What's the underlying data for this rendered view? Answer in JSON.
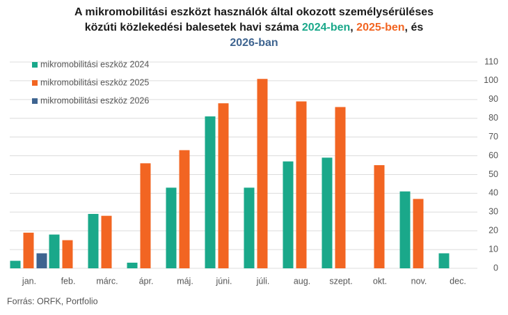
{
  "chart_data": {
    "type": "bar",
    "title_lines": [
      [
        {
          "text": "A mikromobilitási eszközt használók által okozott személysérüléses",
          "color": "#1a1a1a"
        }
      ],
      [
        {
          "text": "közúti közlekedési balesetek havi száma ",
          "color": "#1a1a1a"
        },
        {
          "text": "2024-ben",
          "color": "#1aa88a"
        },
        {
          "text": ", ",
          "color": "#1a1a1a"
        },
        {
          "text": "2025-ben",
          "color": "#f26522"
        },
        {
          "text": ", és",
          "color": "#1a1a1a"
        }
      ],
      [
        {
          "text": "2026-ban",
          "color": "#3e6490"
        }
      ]
    ],
    "categories": [
      "jan.",
      "feb.",
      "márc.",
      "ápr.",
      "máj.",
      "júni.",
      "júli.",
      "aug.",
      "szept.",
      "okt.",
      "nov.",
      "dec."
    ],
    "series": [
      {
        "name": "mikromobilitási eszköz 2024",
        "color": "#1aa88a",
        "values": [
          4,
          18,
          29,
          3,
          43,
          81,
          43,
          57,
          59,
          null,
          41,
          8
        ]
      },
      {
        "name": "mikromobilitási eszköz 2025",
        "color": "#f26522",
        "values": [
          19,
          15,
          28,
          56,
          63,
          88,
          101,
          89,
          86,
          55,
          37,
          null
        ]
      },
      {
        "name": "mikromobilitási eszköz 2026",
        "color": "#3e6490",
        "values": [
          8,
          null,
          null,
          null,
          null,
          null,
          null,
          null,
          null,
          null,
          null,
          null
        ]
      }
    ],
    "ylim": [
      0,
      110
    ],
    "yticks": [
      0,
      10,
      20,
      30,
      40,
      50,
      60,
      70,
      80,
      90,
      100,
      110
    ],
    "y_axis_side": "right",
    "grid": true,
    "legend": "upper left",
    "source": "Forrás: ORFK, Portfolio"
  }
}
